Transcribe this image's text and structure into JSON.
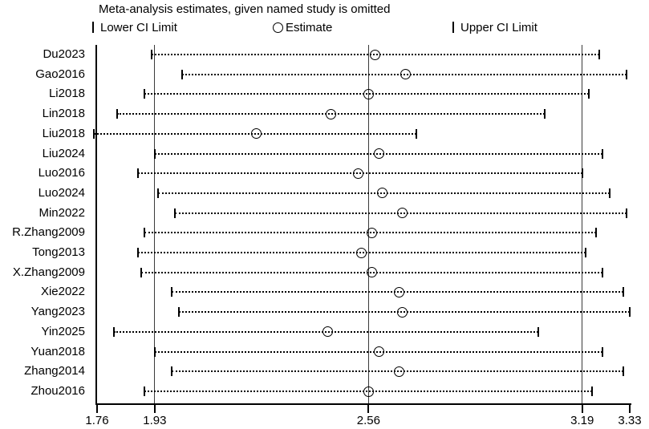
{
  "title": "Meta-analysis estimates, given named study is omitted",
  "legend": {
    "lower": "Lower CI Limit",
    "estimate": "Estimate",
    "upper": "Upper CI Limit"
  },
  "colors": {
    "ink": "#000000",
    "reference_line": "#3a3a3a"
  },
  "chart_data": {
    "type": "scatter",
    "subtype": "leave-one-out-sensitivity-forest-plot",
    "orientation": "horizontal",
    "title": "Meta-analysis estimates, given named study is omitted",
    "categories": [
      "Du2023",
      "Gao2016",
      "Li2018",
      "Lin2018",
      "Liu2018",
      "Liu2024",
      "Luo2016",
      "Luo2024",
      "Min2022",
      "R.Zhang2009",
      "Tong2013",
      "X.Zhang2009",
      "Xie2022",
      "Yang2023",
      "Yin2025",
      "Yuan2018",
      "Zhang2014",
      "Zhou2016"
    ],
    "series": [
      {
        "name": "Lower CI Limit",
        "values": [
          1.92,
          2.01,
          1.9,
          1.82,
          1.75,
          1.93,
          1.88,
          1.94,
          1.99,
          1.9,
          1.88,
          1.89,
          1.98,
          2.0,
          1.81,
          1.93,
          1.98,
          1.9
        ]
      },
      {
        "name": "Estimate",
        "values": [
          2.58,
          2.67,
          2.56,
          2.45,
          2.23,
          2.59,
          2.53,
          2.6,
          2.66,
          2.57,
          2.54,
          2.57,
          2.65,
          2.66,
          2.44,
          2.59,
          2.65,
          2.56
        ]
      },
      {
        "name": "Upper CI Limit",
        "values": [
          3.24,
          3.32,
          3.21,
          3.08,
          2.7,
          3.25,
          3.19,
          3.27,
          3.32,
          3.23,
          3.2,
          3.25,
          3.31,
          3.33,
          3.06,
          3.25,
          3.31,
          3.22
        ]
      }
    ],
    "xlim": [
      1.76,
      3.33
    ],
    "x_tick_labels": [
      "1.76",
      "1.93",
      "2.56",
      "3.19",
      "3.33"
    ],
    "x_tick_values": [
      1.76,
      1.93,
      2.56,
      3.19,
      3.33
    ],
    "reference_lines_x": [
      1.93,
      2.56,
      3.19
    ],
    "grid": false,
    "legend_position": "top",
    "xlabel": "",
    "ylabel": ""
  }
}
